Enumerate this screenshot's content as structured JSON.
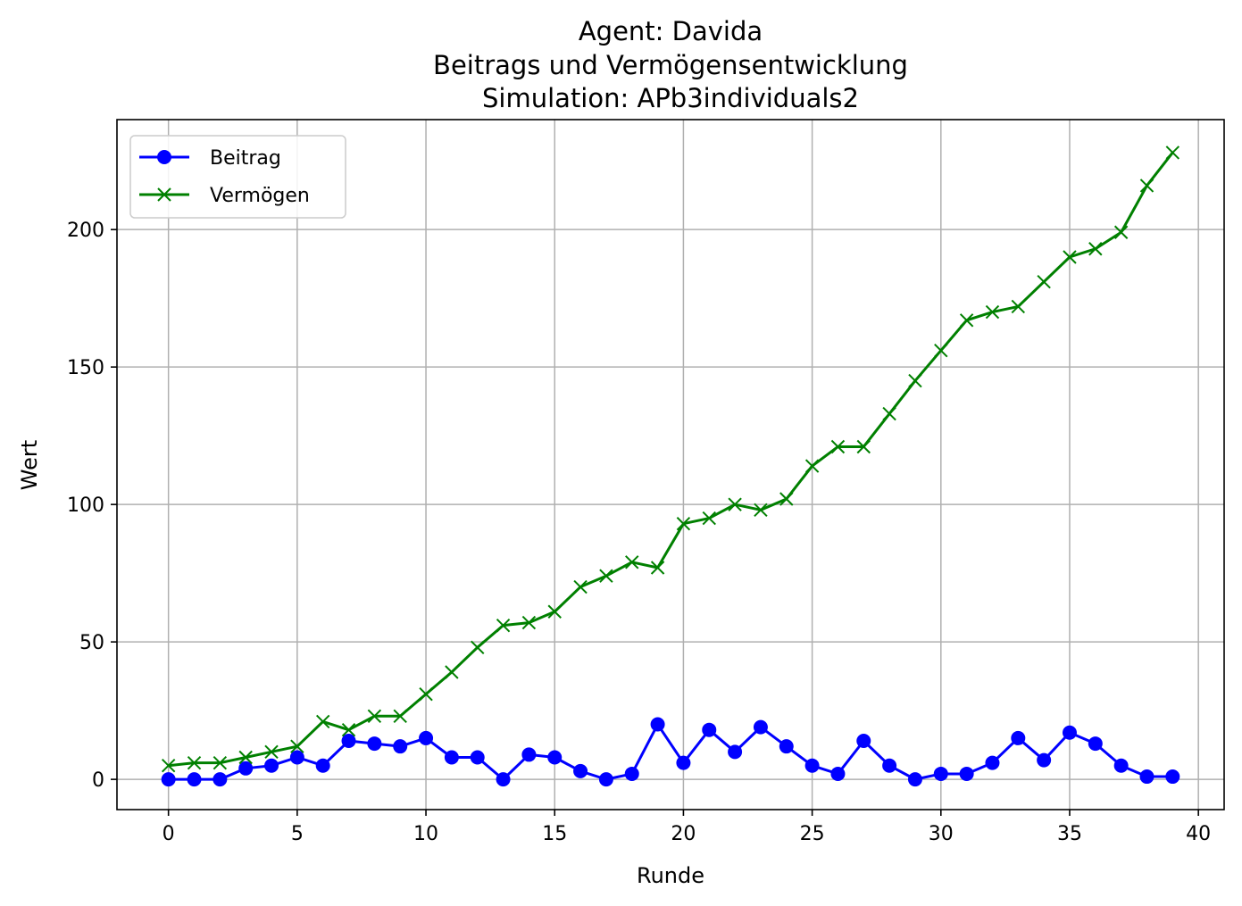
{
  "chart_data": {
    "type": "line",
    "title": [
      "Agent: Davida",
      "Beitrags und Vermögensentwicklung",
      "Simulation: APb3individuals2"
    ],
    "xlabel": "Runde",
    "ylabel": "Wert",
    "xlim": [
      -2,
      41
    ],
    "ylim": [
      -11,
      240
    ],
    "xticks": [
      0,
      5,
      10,
      15,
      20,
      25,
      30,
      35,
      40
    ],
    "yticks": [
      0,
      50,
      100,
      150,
      200
    ],
    "grid": true,
    "legend_position": "top-left",
    "x": [
      0,
      1,
      2,
      3,
      4,
      5,
      6,
      7,
      8,
      9,
      10,
      11,
      12,
      13,
      14,
      15,
      16,
      17,
      18,
      19,
      20,
      21,
      22,
      23,
      24,
      25,
      26,
      27,
      28,
      29,
      30,
      31,
      32,
      33,
      34,
      35,
      36,
      37,
      38,
      39
    ],
    "series": [
      {
        "name": "Beitrag",
        "color": "#0000ff",
        "marker": "circle",
        "values": [
          0,
          0,
          0,
          4,
          5,
          8,
          5,
          14,
          13,
          12,
          15,
          8,
          8,
          0,
          9,
          8,
          3,
          0,
          2,
          20,
          6,
          18,
          10,
          19,
          12,
          5,
          2,
          14,
          5,
          0,
          2,
          2,
          6,
          15,
          7,
          17,
          13,
          5,
          1,
          1
        ]
      },
      {
        "name": "Vermögen",
        "color": "#008000",
        "marker": "x",
        "values": [
          5,
          6,
          6,
          8,
          10,
          12,
          21,
          18,
          23,
          23,
          31,
          39,
          48,
          56,
          57,
          61,
          70,
          74,
          79,
          77,
          93,
          95,
          100,
          98,
          102,
          114,
          121,
          121,
          133,
          145,
          156,
          167,
          170,
          172,
          181,
          190,
          193,
          199,
          216,
          228
        ]
      }
    ]
  }
}
